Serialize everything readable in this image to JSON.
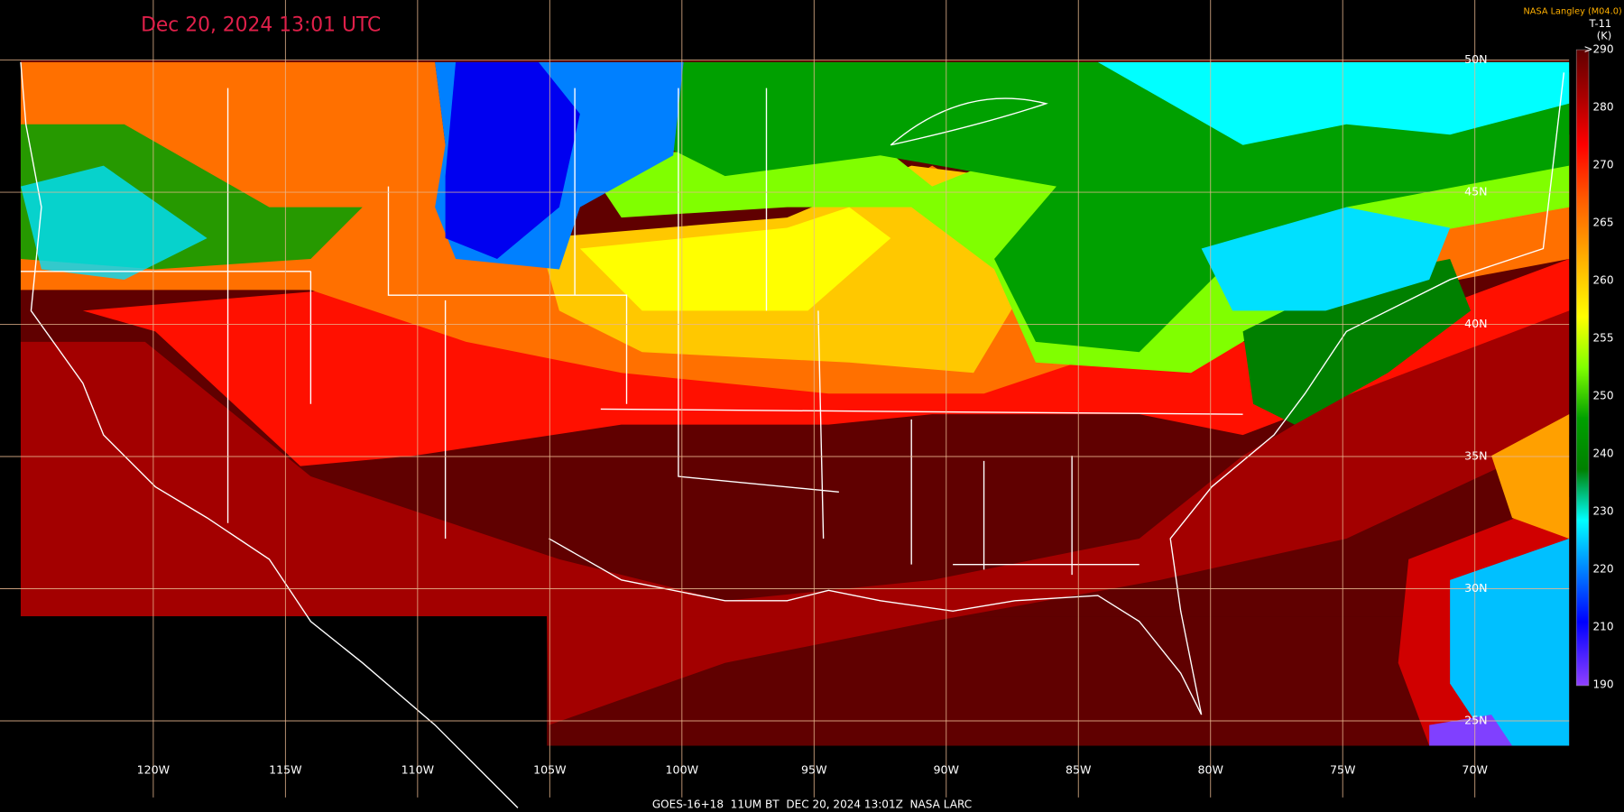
{
  "title": "Dec 20, 2024 13:01 UTC",
  "credit": "NASA Langley (M04.0)",
  "colorbar": {
    "title": "T-11",
    "unit": "(K)",
    "labels": [
      ">290",
      "280",
      "270",
      "265",
      "260",
      "255",
      "250",
      "240",
      "230",
      "220",
      "210",
      "190"
    ]
  },
  "longitude_labels": [
    "120W",
    "115W",
    "110W",
    "105W",
    "100W",
    "95W",
    "90W",
    "85W",
    "80W",
    "75W",
    "70W"
  ],
  "latitude_labels": [
    "50N",
    "45N",
    "40N",
    "35N",
    "30N",
    "25N"
  ],
  "footer": "GOES-16+18  11UM BT  DEC 20, 2024 13:01Z  NASA LARC"
}
